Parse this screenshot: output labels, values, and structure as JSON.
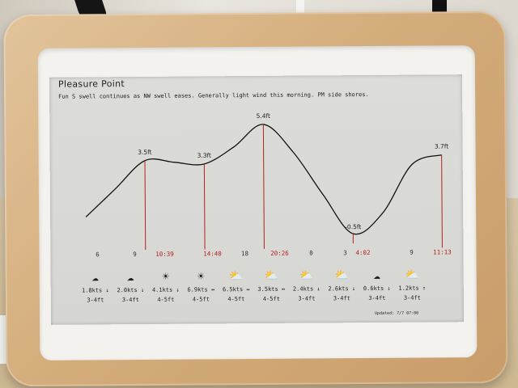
{
  "display": {
    "title": "Pleasure Point",
    "subtitle": "Fun S swell continues as NW swell eases. Generally light  wind this morning. PM side shores.",
    "footer": "Updated: 7/7 07:00"
  },
  "chart_data": {
    "type": "line",
    "x_ticks": [
      "6",
      "9",
      "10:39",
      "14:40",
      "18",
      "20:26",
      "0",
      "3",
      "4:02",
      "9",
      "11:13"
    ],
    "tide_events": [
      {
        "time": "10:39",
        "height": "3.5ft"
      },
      {
        "time": "14:40",
        "height": "3.3ft"
      },
      {
        "time": "20:26",
        "height": "5.4ft"
      },
      {
        "time": "4:02",
        "height": "-0.5ft"
      },
      {
        "time": "11:13",
        "height": "3.7ft"
      }
    ],
    "series": [
      {
        "values": [
          0.5,
          2.0,
          3.5,
          3.4,
          3.3,
          4.2,
          5.4,
          3.9,
          1.6,
          -0.5,
          0.6,
          3.2,
          3.7
        ]
      }
    ]
  },
  "forecast": [
    {
      "icon": "partly-cloudy-wind-icon",
      "glyph": "☁",
      "wind": "1.8kts ↓",
      "surf": "3-4ft"
    },
    {
      "icon": "cloud-icon",
      "glyph": "☁",
      "wind": "2.0kts ↓",
      "surf": "3-4ft"
    },
    {
      "icon": "sun-icon",
      "glyph": "☀",
      "wind": "4.1kts ↓",
      "surf": "4-5ft"
    },
    {
      "icon": "sun-icon",
      "glyph": "☀",
      "wind": "6.9kts ↔",
      "surf": "4-5ft"
    },
    {
      "icon": "partly-cloudy-icon",
      "glyph": "⛅",
      "wind": "6.5kts ↔",
      "surf": "4-5ft"
    },
    {
      "icon": "partly-cloudy-icon",
      "glyph": "⛅",
      "wind": "3.5kts ↔",
      "surf": "4-5ft"
    },
    {
      "icon": "partly-cloudy-icon",
      "glyph": "⛅",
      "wind": "2.4kts ↓",
      "surf": "3-4ft"
    },
    {
      "icon": "partly-cloudy-icon",
      "glyph": "⛅",
      "wind": "2.6kts ↓",
      "surf": "3-4ft"
    },
    {
      "icon": "cloud-icon",
      "glyph": "☁",
      "wind": "0.6kts ↓",
      "surf": "3-4ft"
    },
    {
      "icon": "partly-cloudy-icon",
      "glyph": "⛅",
      "wind": "1.2kts ↑",
      "surf": "3-4ft"
    }
  ],
  "colors": {
    "event_line": "#b22222",
    "curve": "#111111"
  }
}
